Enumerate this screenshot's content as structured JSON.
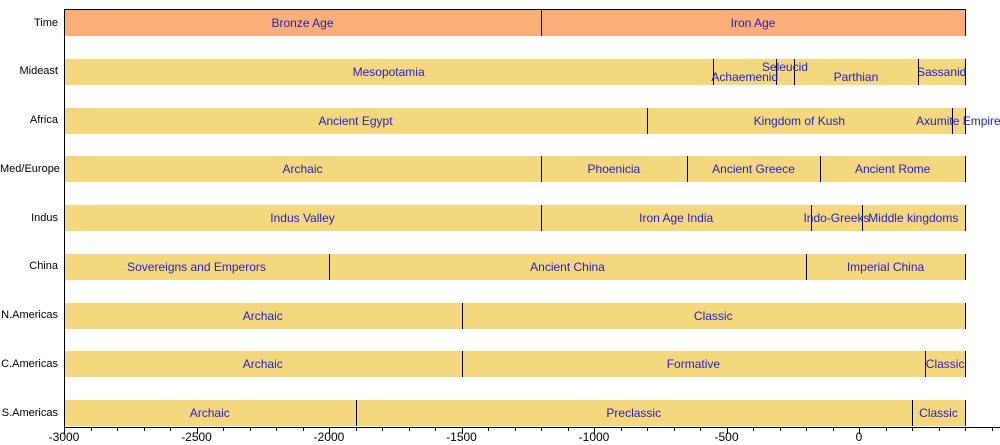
{
  "palette": {
    "time_row_fill": "#FAAE78",
    "region_row_fill": "#F5D87D",
    "segment_label_color": "#1F1FCB",
    "row_label_color": "#000000",
    "axis_color": "#000000",
    "background": "#FFFFFF"
  },
  "chart_data": {
    "type": "bar",
    "subtype": "horizontal-timeline-broken-bar",
    "title": "",
    "xlabel": "",
    "ylabel": "",
    "x_axis": {
      "min": -3000,
      "bars_end": 400,
      "major_ticks": [
        -3000,
        -2500,
        -2000,
        -1500,
        -1000,
        -500,
        0
      ],
      "minor_tick_step": 100,
      "minor_tick_range": [
        -3000,
        500
      ],
      "grid": false
    },
    "legend": null,
    "rows": [
      {
        "label": "Time",
        "fill": "time_row_fill",
        "segments": [
          {
            "label": "Bronze Age",
            "start": -3000,
            "end": -1200
          },
          {
            "label": "Iron Age",
            "start": -1200,
            "end": 400
          }
        ]
      },
      {
        "label": "Mideast",
        "fill": "region_row_fill",
        "segments": [
          {
            "label": "Mesopotamia",
            "start": -3000,
            "end": -550
          },
          {
            "label": "Achaemenid",
            "start": -550,
            "end": -312,
            "label_dy": 5
          },
          {
            "label": "Seleucid",
            "start": -312,
            "end": -247,
            "label_dy": -5
          },
          {
            "label": "Parthian",
            "start": -247,
            "end": 224,
            "label_dy": 5
          },
          {
            "label": "Sassanid",
            "start": 224,
            "end": 400
          }
        ]
      },
      {
        "label": "Africa",
        "fill": "region_row_fill",
        "segments": [
          {
            "label": "Ancient Egypt",
            "start": -3000,
            "end": -800
          },
          {
            "label": "Kingdom of Kush",
            "start": -800,
            "end": 350
          },
          {
            "label": "Axumite Empire",
            "start": 350,
            "end": 400
          }
        ]
      },
      {
        "label": "Med/Europe",
        "fill": "region_row_fill",
        "segments": [
          {
            "label": "Archaic",
            "start": -3000,
            "end": -1200
          },
          {
            "label": "Phoenicia",
            "start": -1200,
            "end": -650
          },
          {
            "label": "Ancient Greece",
            "start": -650,
            "end": -146
          },
          {
            "label": "Ancient Rome",
            "start": -146,
            "end": 400
          }
        ]
      },
      {
        "label": "Indus",
        "fill": "region_row_fill",
        "segments": [
          {
            "label": "Indus Valley",
            "start": -3000,
            "end": -1200
          },
          {
            "label": "Iron Age India",
            "start": -1200,
            "end": -180
          },
          {
            "label": "Indo-Greeks",
            "start": -180,
            "end": 10
          },
          {
            "label": "Middle kingdoms",
            "start": 10,
            "end": 400
          }
        ]
      },
      {
        "label": "China",
        "fill": "region_row_fill",
        "segments": [
          {
            "label": "Sovereigns and Emperors",
            "start": -3000,
            "end": -2000
          },
          {
            "label": "Ancient China",
            "start": -2000,
            "end": -200
          },
          {
            "label": "Imperial China",
            "start": -200,
            "end": 400
          }
        ]
      },
      {
        "label": "N.Americas",
        "fill": "region_row_fill",
        "segments": [
          {
            "label": "Archaic",
            "start": -3000,
            "end": -1500
          },
          {
            "label": "Classic",
            "start": -1500,
            "end": 400
          }
        ]
      },
      {
        "label": "C.Americas",
        "fill": "region_row_fill",
        "segments": [
          {
            "label": "Archaic",
            "start": -3000,
            "end": -1500
          },
          {
            "label": "Formative",
            "start": -1500,
            "end": 250
          },
          {
            "label": "Classic",
            "start": 250,
            "end": 400
          }
        ]
      },
      {
        "label": "S.Americas",
        "fill": "region_row_fill",
        "segments": [
          {
            "label": "Archaic",
            "start": -3000,
            "end": -1900
          },
          {
            "label": "Preclassic",
            "start": -1900,
            "end": 200
          },
          {
            "label": "Classic",
            "start": 200,
            "end": 400
          }
        ]
      }
    ]
  }
}
